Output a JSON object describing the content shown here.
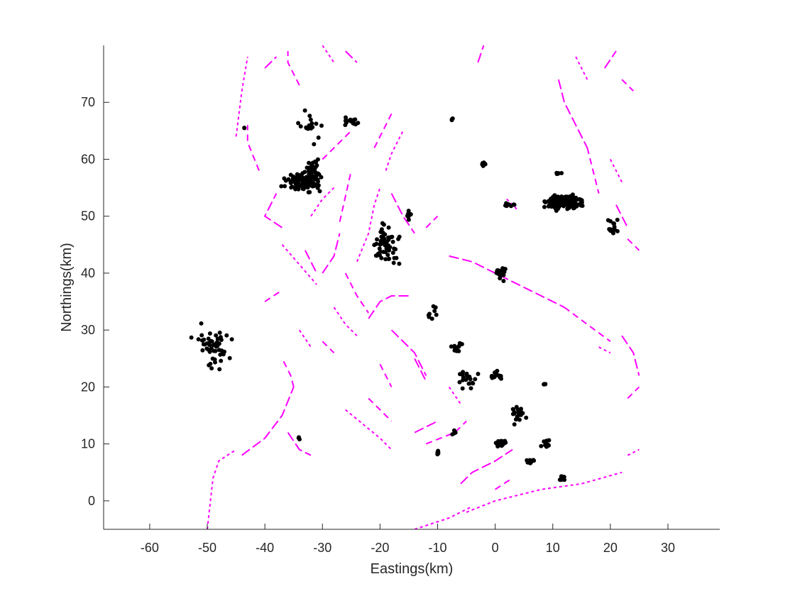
{
  "chart_data": {
    "type": "scatter",
    "xlabel": "Eastings(km)",
    "ylabel": "Northings(km)",
    "xlim": [
      -68,
      39
    ],
    "ylim": [
      -5,
      80
    ],
    "xticks": [
      -60,
      -50,
      -40,
      -30,
      -20,
      -10,
      0,
      10,
      20,
      30
    ],
    "yticks": [
      0,
      10,
      20,
      30,
      40,
      50,
      60,
      70
    ],
    "grid": false,
    "box": "left-bottom",
    "series": [
      {
        "kind": "fault-lines",
        "color": "#ff00ff",
        "segments": [
          [
            [
              -44,
              8
            ],
            [
              -40,
              11
            ],
            [
              -37,
              15
            ],
            [
              -35,
              20
            ]
          ],
          [
            [
              -35,
              20
            ],
            [
              -35.5,
              22
            ],
            [
              -37,
              25
            ]
          ],
          [
            [
              -50,
              -5
            ],
            [
              -49,
              4
            ],
            [
              -48,
              7
            ],
            [
              -45,
              9
            ]
          ],
          [
            [
              -36,
              12
            ],
            [
              -34,
              9
            ],
            [
              -32,
              8
            ]
          ],
          [
            [
              -40,
              35
            ],
            [
              -37,
              37
            ]
          ],
          [
            [
              -37,
              45
            ],
            [
              -31,
              38
            ]
          ],
          [
            [
              -30,
              40
            ],
            [
              -28,
              43
            ],
            [
              -27,
              47
            ]
          ],
          [
            [
              -27,
              49
            ],
            [
              -25,
              58
            ]
          ],
          [
            [
              -24,
              42
            ],
            [
              -22,
              47
            ],
            [
              -21,
              52
            ],
            [
              -20,
              55
            ]
          ],
          [
            [
              -22,
              32
            ],
            [
              -20,
              35
            ],
            [
              -18,
              36
            ],
            [
              -15,
              36
            ]
          ],
          [
            [
              -21,
              62
            ],
            [
              -18,
              68
            ]
          ],
          [
            [
              -19,
              58
            ],
            [
              -18,
              61
            ],
            [
              -16,
              65
            ]
          ],
          [
            [
              -18,
              54
            ],
            [
              -16,
              50
            ],
            [
              -14,
              47
            ]
          ],
          [
            [
              -26,
              40
            ],
            [
              -24,
              36
            ],
            [
              -22,
              33
            ]
          ],
          [
            [
              -28,
              34
            ],
            [
              -26,
              31
            ],
            [
              -24,
              29
            ]
          ],
          [
            [
              -18,
              30
            ],
            [
              -14,
              26
            ],
            [
              -12,
              22
            ]
          ],
          [
            [
              -22,
              18
            ],
            [
              -18,
              14
            ]
          ],
          [
            [
              -26,
              16
            ],
            [
              -20,
              11
            ],
            [
              -18,
              9
            ]
          ],
          [
            [
              -14,
              12
            ],
            [
              -10,
              14
            ]
          ],
          [
            [
              -12,
              10
            ],
            [
              -7,
              12
            ],
            [
              -5,
              14
            ]
          ],
          [
            [
              -14,
              -5
            ],
            [
              -8,
              -3
            ],
            [
              -4,
              -1
            ]
          ],
          [
            [
              -6,
              3
            ],
            [
              -4,
              5
            ],
            [
              0,
              7
            ],
            [
              3,
              9
            ]
          ],
          [
            [
              0,
              2
            ],
            [
              3,
              4
            ]
          ],
          [
            [
              -5,
              -2
            ],
            [
              0,
              0
            ],
            [
              8,
              2
            ],
            [
              15,
              3
            ],
            [
              22,
              5
            ]
          ],
          [
            [
              -8,
              43
            ],
            [
              -4,
              42
            ],
            [
              2,
              39
            ],
            [
              8,
              36
            ],
            [
              12,
              34
            ]
          ],
          [
            [
              12,
              34
            ],
            [
              16,
              31
            ],
            [
              20,
              28
            ]
          ],
          [
            [
              18,
              27
            ],
            [
              20,
              26
            ]
          ],
          [
            [
              22,
              29
            ],
            [
              24,
              26
            ],
            [
              25,
              22
            ]
          ],
          [
            [
              23,
              18
            ],
            [
              25,
              20
            ]
          ],
          [
            [
              23,
              8
            ],
            [
              25,
              9
            ]
          ],
          [
            [
              -37,
              48
            ],
            [
              -40,
              50
            ],
            [
              -38,
              54
            ]
          ],
          [
            [
              -41,
              58
            ],
            [
              -43,
              63
            ],
            [
              -43,
              66
            ]
          ],
          [
            [
              -45,
              64
            ],
            [
              -44,
              72
            ],
            [
              -43,
              78
            ]
          ],
          [
            [
              -40,
              76
            ],
            [
              -38,
              78
            ]
          ],
          [
            [
              -34,
              73
            ],
            [
              -36,
              77
            ],
            [
              -36,
              79
            ]
          ],
          [
            [
              -30,
              80
            ],
            [
              -28,
              77
            ]
          ],
          [
            [
              -26,
              79
            ],
            [
              -24,
              77
            ]
          ],
          [
            [
              -30,
              60
            ],
            [
              -28,
              62
            ],
            [
              -25,
              65
            ]
          ],
          [
            [
              -32,
              50
            ],
            [
              -30,
              53
            ],
            [
              -28,
              55
            ]
          ],
          [
            [
              11,
              74
            ],
            [
              12,
              70
            ],
            [
              14,
              66
            ],
            [
              16,
              62
            ]
          ],
          [
            [
              16,
              62
            ],
            [
              17,
              58
            ],
            [
              18,
              54
            ]
          ],
          [
            [
              14,
              78
            ],
            [
              16,
              74
            ]
          ],
          [
            [
              19,
              76
            ],
            [
              21,
              79
            ]
          ],
          [
            [
              22,
              74
            ],
            [
              24,
              72
            ]
          ],
          [
            [
              20,
              60
            ],
            [
              22,
              56
            ]
          ],
          [
            [
              21,
              52
            ],
            [
              23,
              48
            ]
          ],
          [
            [
              23,
              46
            ],
            [
              25,
              44
            ]
          ],
          [
            [
              2,
              53
            ],
            [
              4,
              51
            ]
          ],
          [
            [
              -3,
              77
            ],
            [
              -2,
              80
            ]
          ],
          [
            [
              -12,
              48
            ],
            [
              -10,
              50
            ]
          ],
          [
            [
              -8,
              20
            ],
            [
              -6,
              17
            ]
          ],
          [
            [
              -14,
              25
            ],
            [
              -12,
              21
            ]
          ],
          [
            [
              -30,
              28
            ],
            [
              -28,
              26
            ]
          ],
          [
            [
              -34,
              30
            ],
            [
              -32,
              27
            ]
          ],
          [
            [
              -33,
              44
            ],
            [
              -31,
              40
            ]
          ],
          [
            [
              -20,
              24
            ],
            [
              -18,
              20
            ]
          ]
        ]
      },
      {
        "kind": "earthquake-clusters",
        "color": "#000000",
        "clusters": [
          {
            "cx": -49,
            "cy": 27,
            "sx": 2.6,
            "sy": 3.3,
            "n": 50
          },
          {
            "cx": -34,
            "cy": 56,
            "sx": 2.2,
            "sy": 1.3,
            "n": 70
          },
          {
            "cx": -31.5,
            "cy": 57,
            "sx": 1.2,
            "sy": 2.2,
            "n": 60
          },
          {
            "cx": -32,
            "cy": 66,
            "sx": 1.6,
            "sy": 2.5,
            "n": 18
          },
          {
            "cx": -25,
            "cy": 66.5,
            "sx": 1.2,
            "sy": 0.6,
            "n": 14
          },
          {
            "cx": -19,
            "cy": 45,
            "sx": 2.0,
            "sy": 3.0,
            "n": 60
          },
          {
            "cx": -15,
            "cy": 50,
            "sx": 0.6,
            "sy": 0.8,
            "n": 8
          },
          {
            "cx": -11,
            "cy": 33,
            "sx": 0.8,
            "sy": 1.0,
            "n": 8
          },
          {
            "cx": -7,
            "cy": 27,
            "sx": 1.2,
            "sy": 1.0,
            "n": 14
          },
          {
            "cx": -5,
            "cy": 21,
            "sx": 1.5,
            "sy": 1.5,
            "n": 20
          },
          {
            "cx": 0,
            "cy": 22,
            "sx": 1.2,
            "sy": 1.0,
            "n": 14
          },
          {
            "cx": 1,
            "cy": 10,
            "sx": 0.8,
            "sy": 0.6,
            "n": 22
          },
          {
            "cx": 4,
            "cy": 15,
            "sx": 1.0,
            "sy": 1.5,
            "n": 18
          },
          {
            "cx": 6,
            "cy": 7,
            "sx": 0.8,
            "sy": 0.4,
            "n": 12
          },
          {
            "cx": 9,
            "cy": 10,
            "sx": 0.8,
            "sy": 0.6,
            "n": 10
          },
          {
            "cx": 11.5,
            "cy": 4,
            "sx": 0.6,
            "sy": 0.4,
            "n": 10
          },
          {
            "cx": 1,
            "cy": 40,
            "sx": 1.0,
            "sy": 1.2,
            "n": 20
          },
          {
            "cx": 12,
            "cy": 52.5,
            "sx": 2.5,
            "sy": 1.2,
            "n": 160
          },
          {
            "cx": 20.5,
            "cy": 48,
            "sx": 0.8,
            "sy": 1.5,
            "n": 16
          },
          {
            "cx": -2,
            "cy": 59,
            "sx": 0.6,
            "sy": 0.4,
            "n": 8
          },
          {
            "cx": 2.5,
            "cy": 52,
            "sx": 0.8,
            "sy": 0.3,
            "n": 10
          },
          {
            "cx": -10,
            "cy": 8.5,
            "sx": 0.5,
            "sy": 0.4,
            "n": 6
          },
          {
            "cx": -7,
            "cy": 12,
            "sx": 0.6,
            "sy": 0.4,
            "n": 6
          },
          {
            "cx": -34,
            "cy": 11,
            "sx": 0.2,
            "sy": 0.3,
            "n": 3
          },
          {
            "cx": 11,
            "cy": 57.5,
            "sx": 0.6,
            "sy": 0.1,
            "n": 6
          },
          {
            "cx": -7.5,
            "cy": 67,
            "sx": 0.2,
            "sy": 0.2,
            "n": 3
          },
          {
            "cx": -43.5,
            "cy": 65.5,
            "sx": 0.1,
            "sy": 0.1,
            "n": 2
          },
          {
            "cx": 8.5,
            "cy": 20.5,
            "sx": 0.3,
            "sy": 0.1,
            "n": 4
          }
        ]
      }
    ]
  }
}
